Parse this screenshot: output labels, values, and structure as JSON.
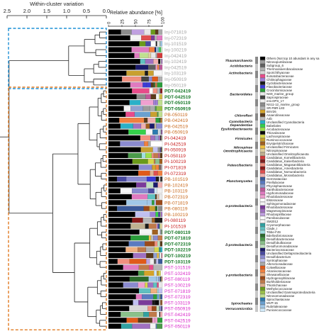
{
  "chart_data": {
    "type": "bar",
    "panels": {
      "dendrogram": {
        "xlabel": "Within-cluster variation",
        "ticks": [
          "2.5",
          "2.0",
          "1.5",
          "1.0",
          "0.5",
          "0.0"
        ]
      },
      "bars": {
        "xlabel": "Relative abundance [%]",
        "ticks": [
          "0",
          "25",
          "50",
          "75",
          "100"
        ]
      }
    },
    "samples": [
      {
        "label": "Inj-071819",
        "group": "Inj"
      },
      {
        "label": "Inj-072319",
        "group": "Inj"
      },
      {
        "label": "Inj-101519",
        "group": "Inj"
      },
      {
        "label": "Inj-100219",
        "group": "Inj"
      },
      {
        "label": "Inj-042419",
        "group": "Inj"
      },
      {
        "label": "Inj-102419",
        "group": "Inj"
      },
      {
        "label": "Inj-042519",
        "group": "Inj"
      },
      {
        "label": "Inj-103119",
        "group": "Inj"
      },
      {
        "label": "Inj-050919",
        "group": "Inj"
      },
      {
        "label": "Inj-050119",
        "group": "Inj"
      },
      {
        "label": "PDT-042419",
        "group": "PDT"
      },
      {
        "label": "PDT-042519",
        "group": "PDT"
      },
      {
        "label": "PDT-050119",
        "group": "PDT"
      },
      {
        "label": "PDT-050919",
        "group": "PDT"
      },
      {
        "label": "PB-050119",
        "group": "PB"
      },
      {
        "label": "PB-042419",
        "group": "PB"
      },
      {
        "label": "PB-042519",
        "group": "PB"
      },
      {
        "label": "PB-050919",
        "group": "PB"
      },
      {
        "label": "PI-042419",
        "group": "PI"
      },
      {
        "label": "PI-042519",
        "group": "PI"
      },
      {
        "label": "PI-050919",
        "group": "PI"
      },
      {
        "label": "PI-050119",
        "group": "PI"
      },
      {
        "label": "PI-100219",
        "group": "PI"
      },
      {
        "label": "PI-071819",
        "group": "PI"
      },
      {
        "label": "PI-072319",
        "group": "PI"
      },
      {
        "label": "PB-101519",
        "group": "PB"
      },
      {
        "label": "PB-102419",
        "group": "PB"
      },
      {
        "label": "PB-103119",
        "group": "PB"
      },
      {
        "label": "PB-072319",
        "group": "PB"
      },
      {
        "label": "PB-071819",
        "group": "PB"
      },
      {
        "label": "PB-080119",
        "group": "PB"
      },
      {
        "label": "PB-100219",
        "group": "PB"
      },
      {
        "label": "PI-080119",
        "group": "PI"
      },
      {
        "label": "PI-101519",
        "group": "PI"
      },
      {
        "label": "PDT-080119",
        "group": "PDT"
      },
      {
        "label": "PDT-071819",
        "group": "PDT"
      },
      {
        "label": "PDT-072319",
        "group": "PDT"
      },
      {
        "label": "PDT-102219",
        "group": "PDT"
      },
      {
        "label": "PDT-100219",
        "group": "PDT"
      },
      {
        "label": "PDT-103119",
        "group": "PDT"
      },
      {
        "label": "PST-101519",
        "group": "PST"
      },
      {
        "label": "PST-102419",
        "group": "PST"
      },
      {
        "label": "PST-080119",
        "group": "PST"
      },
      {
        "label": "PST-100219",
        "group": "PST"
      },
      {
        "label": "PST-071819",
        "group": "PST"
      },
      {
        "label": "PST-072319",
        "group": "PST"
      },
      {
        "label": "PST-103119",
        "group": "PST"
      },
      {
        "label": "PST-050919",
        "group": "PST"
      },
      {
        "label": "PST-042419",
        "group": "PST"
      },
      {
        "label": "PST-042519",
        "group": "PST"
      },
      {
        "label": "PST-050119",
        "group": "PST"
      }
    ],
    "group_colors": {
      "Inj": "#a6a6a6",
      "PDT": "#1a7a2a",
      "PB": "#c96a1e",
      "PI": "#c81e1e",
      "PST": "#d926c9"
    },
    "cluster_boxes": [
      {
        "rows": [
          0,
          9
        ],
        "color": "#1e90d6"
      },
      {
        "rows": [
          10,
          50
        ],
        "color": "#e07a22"
      }
    ],
    "legend": [
      {
        "phylum": "",
        "family": "Others (Not top 10 abundant in any sa",
        "color": "#000000"
      },
      {
        "phylum": "Thaumarchaeota",
        "family": "Nitrosopumilaceae",
        "color": "#9c9c9c"
      },
      {
        "phylum": "Acidobacteria",
        "family": "Subgroup_6",
        "color": "#5f5f5f"
      },
      {
        "phylum": "",
        "family": "Thermoanaerobaculaceae",
        "color": "#b0b0b0"
      },
      {
        "phylum": "Actinobacteria",
        "family": "Sporichthyaceae",
        "color": "#d8d8d8"
      },
      {
        "phylum": "",
        "family": "Ilumatobacteraceae",
        "color": "#e84b8a"
      },
      {
        "phylum": "",
        "family": "Chitinophagaceae",
        "color": "#9f7fd6"
      },
      {
        "phylum": "",
        "family": "Cyclobacteriaceae",
        "color": "#1a1a1a"
      },
      {
        "phylum": "",
        "family": "Flavobacteriaceae",
        "color": "#3b3bd6"
      },
      {
        "phylum": "",
        "family": "Crocinitomicaceae",
        "color": "#2a9d3a"
      },
      {
        "phylum": "Bacteroidetes",
        "family": "NS9_marine_group",
        "color": "#e8e8e8"
      },
      {
        "phylum": "",
        "family": "Saprospiraceae",
        "color": "#444444"
      },
      {
        "phylum": "",
        "family": "env.OPS_17",
        "color": "#eeeeee"
      },
      {
        "phylum": "",
        "family": "NS11-12_marine_group",
        "color": "#8c8c8c"
      },
      {
        "phylum": "",
        "family": "SR-FBR-L83",
        "color": "#b5b5b5"
      },
      {
        "phylum": "",
        "family": "BSV26",
        "color": "#d4a32a"
      },
      {
        "phylum": "Chloroflexi",
        "family": "Anaerolineaceae",
        "color": "#5a3a1a"
      },
      {
        "phylum": "",
        "family": "A4b",
        "color": "#bdbdbd"
      },
      {
        "phylum": "Cyanobacteria",
        "family": "Unclassified Cyanobacteria",
        "color": "#2ab0c8"
      },
      {
        "phylum": "Dependentiae",
        "family": "Babeliales",
        "color": "#33d04a"
      },
      {
        "phylum": "Epsilonbacteraeota",
        "family": "Arcobacteraceae",
        "color": "#9be04a"
      },
      {
        "phylum": "",
        "family": "Thiovulaceae",
        "color": "#0a0a0a"
      },
      {
        "phylum": "Firmicutes",
        "family": "Lachnospiraceae",
        "color": "#d6d64a"
      },
      {
        "phylum": "",
        "family": "Ruminococcaceae",
        "color": "#c8a030"
      },
      {
        "phylum": "",
        "family": "Erysipelotrichaceae",
        "color": "#a06020"
      },
      {
        "phylum": "Nitrospinae",
        "family": "Unclassified Firmicutes",
        "color": "#f0c040"
      },
      {
        "phylum": "Omnitrophicaeota",
        "family": "Nitrospinaceae",
        "color": "#e0d0a0"
      },
      {
        "phylum": "",
        "family": "Unclassified Omnitrophicaeota",
        "color": "#c0b090"
      },
      {
        "phylum": "",
        "family": "Candidatus_Komeilibacteria",
        "color": "#d23a3a"
      },
      {
        "phylum": "",
        "family": "Candidatus_Kaiserbacteria",
        "color": "#802020"
      },
      {
        "phylum": "Patescibacteria",
        "family": "Candidatus_Magasanikbacteria",
        "color": "#f09080"
      },
      {
        "phylum": "",
        "family": "Candidatus_Amesbacteria",
        "color": "#8b1a1a"
      },
      {
        "phylum": "",
        "family": "Candidatus_Nomurabacteria",
        "color": "#e05050"
      },
      {
        "phylum": "",
        "family": "Candidatus_Moranbacteria",
        "color": "#f0b0b0"
      },
      {
        "phylum": "",
        "family": "Gemmataceae",
        "color": "#3a5a9a"
      },
      {
        "phylum": "Planctomycetes",
        "family": "Pirellulaceae",
        "color": "#5a7ac0"
      },
      {
        "phylum": "",
        "family": "Phycisphaeraceae",
        "color": "#90a0d0"
      },
      {
        "phylum": "",
        "family": "Xanthobacteraceae",
        "color": "#c05a9a"
      },
      {
        "phylum": "",
        "family": "Hyphomonadaceae",
        "color": "#e07ac0"
      },
      {
        "phylum": "",
        "family": "Rhodobacteraceae",
        "color": "#f0a0d0"
      },
      {
        "phylum": "",
        "family": "Elsteraceae",
        "color": "#ffffff"
      },
      {
        "phylum": "",
        "family": "Sphingomonadaceae",
        "color": "#f5f5f5"
      },
      {
        "phylum": "α-proteobacteria",
        "family": "Rhodobacteraceae",
        "color": "#7a3a9a"
      },
      {
        "phylum": "",
        "family": "Magnetospiraceae",
        "color": "#a070c0"
      },
      {
        "phylum": "",
        "family": "Rhodospirillaceae",
        "color": "#c0a0e0"
      },
      {
        "phylum": "",
        "family": "Parvibaculaceae",
        "color": "#ffffff"
      },
      {
        "phylum": "",
        "family": "SM2012",
        "color": "#f5f5f5"
      },
      {
        "phylum": "",
        "family": "Cryomorphaceae",
        "color": "#30a0a0"
      },
      {
        "phylum": "",
        "family": "Clade_I",
        "color": "#60c0c0"
      },
      {
        "phylum": "",
        "family": "Tibbe-F49",
        "color": "#a0e0e0"
      },
      {
        "phylum": "",
        "family": "Bdellovibrionaceae",
        "color": "#2a6a2a"
      },
      {
        "phylum": "",
        "family": "Desulfobacteraceae",
        "color": "#4a9a4a"
      },
      {
        "phylum": "",
        "family": "Desulfobulbaceae",
        "color": "#8ac08a"
      },
      {
        "phylum": "δ-proteobacteria",
        "family": "Desulfuromonadaceae",
        "color": "#c0e0c0"
      },
      {
        "phylum": "",
        "family": "Bacteriovoracaceae",
        "color": "#1a1a6a"
      },
      {
        "phylum": "",
        "family": "Unclassified Deltaproteobacteria",
        "color": "#4a4aa0"
      },
      {
        "phylum": "",
        "family": "Desulfobacterium",
        "color": "#8a8ad0"
      },
      {
        "phylum": "",
        "family": "Syntrophaceae",
        "color": "#c0c0f0"
      },
      {
        "phylum": "",
        "family": "Alteromonadaceae",
        "color": "#aaaaaa"
      },
      {
        "phylum": "",
        "family": "Colwelliaceae",
        "color": "#e05a1a"
      },
      {
        "phylum": "",
        "family": "Alcanivoracaceae",
        "color": "#f08040"
      },
      {
        "phylum": "γ-proteobacteria",
        "family": "Shewanellaceae",
        "color": "#f0b080"
      },
      {
        "phylum": "",
        "family": "Hydrogenophilaceae",
        "color": "#9a4a1a"
      },
      {
        "phylum": "",
        "family": "Burkholderiaceae",
        "color": "#c07a4a"
      },
      {
        "phylum": "",
        "family": "Thiotrichaceae",
        "color": "#e0b090"
      },
      {
        "phylum": "",
        "family": "Methylococcaceae",
        "color": "#6a9a1a"
      },
      {
        "phylum": "",
        "family": "Unclassified Gammaproteobacteria",
        "color": "#9ac04a"
      },
      {
        "phylum": "",
        "family": "Nitrosomonadaceae",
        "color": "#c0e090"
      },
      {
        "phylum": "",
        "family": "Spirochaetaceae",
        "color": "#2a7ab0"
      },
      {
        "phylum": "Spirochaetes",
        "family": "MVP-15",
        "color": "#6aa0d0"
      },
      {
        "phylum": "Verrucomicrobia",
        "family": "Rubritaleaceae",
        "color": "#a0c8e8"
      },
      {
        "phylum": "",
        "family": "Puniceicoccaceae",
        "color": "#d0e8f8"
      }
    ],
    "phylum_labels": [
      {
        "name": "Thaumarchaeota",
        "row": 1,
        "lines": [
          "Thaumarchaeota"
        ]
      },
      {
        "name": "Acidobacteria",
        "row": 2.5,
        "lines": [
          "Acidobacteria"
        ]
      },
      {
        "name": "Actinobacteria",
        "row": 4.5,
        "lines": [
          "Actinobacteria"
        ]
      },
      {
        "name": "Bacteroidetes",
        "row": 10.5,
        "lines": [
          "Bacteroidetes"
        ]
      },
      {
        "name": "Chloroflexi",
        "row": 16.5,
        "lines": [
          "Chloroflexi"
        ]
      },
      {
        "name": "Cyanobacteria",
        "row": 18.2,
        "lines": [
          "Cyanobacteria",
          "Dependentiae",
          "Epsilonbacteraeota"
        ]
      },
      {
        "name": "Firmicutes",
        "row": 23,
        "lines": [
          "Firmicutes"
        ]
      },
      {
        "name": "Nitrospinae",
        "row": 25.5,
        "lines": [
          "Nitrospinae",
          "Omnitrophicaeota"
        ]
      },
      {
        "name": "Patescibacteria",
        "row": 30.5,
        "lines": [
          "Patescibacteria"
        ]
      },
      {
        "name": "Planctomycetes",
        "row": 35,
        "lines": [
          "Planctomycetes"
        ]
      },
      {
        "name": "α-proteobacteria",
        "row": 42,
        "lines": [
          "α-proteobacteria"
        ]
      },
      {
        "name": "δ-proteobacteria",
        "row": 53,
        "lines": [
          "δ-proteobacteria"
        ]
      },
      {
        "name": "γ-proteobacteria",
        "row": 61.5,
        "lines": [
          "γ-proteobacteria"
        ]
      },
      {
        "name": "Spirochaetes",
        "row": 69.5,
        "lines": [
          "Spirochaetes"
        ]
      },
      {
        "name": "Verrucomicrobia",
        "row": 71,
        "lines": [
          "Verrucomicrobia"
        ]
      }
    ]
  }
}
